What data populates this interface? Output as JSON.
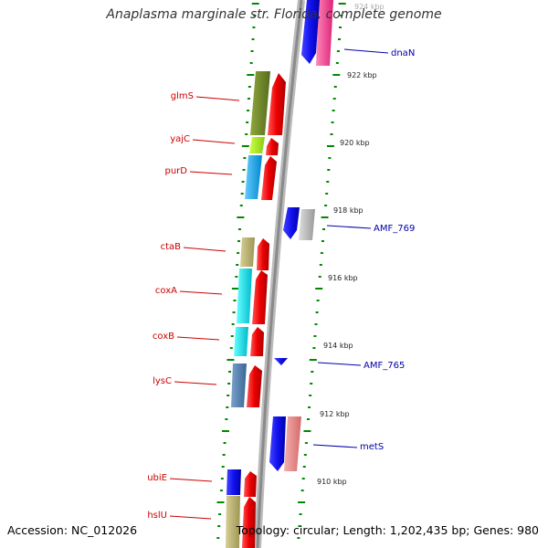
{
  "title": "Anaplasma marginale str. Florida, complete genome",
  "accession": "Accession: NC_012026",
  "summary": "Topology: circular; Length: 1,202,435 bp; Genes: 980",
  "colors": {
    "forward_label": "#cc0000",
    "reverse_label": "#0000aa",
    "tick": "#008800",
    "backbone": "#999999",
    "cds_forward": "#ee0000",
    "cds_reverse": "#1111ee"
  },
  "ruler_labels": [
    "924 kbp",
    "922 kbp",
    "920 kbp",
    "918 kbp",
    "916 kbp",
    "914 kbp",
    "912 kbp",
    "910 kbp"
  ],
  "forward_gene_labels": [
    "glmS",
    "yajC",
    "purD",
    "ctaB",
    "coxA",
    "coxB",
    "lysC",
    "ubiE",
    "hslU"
  ],
  "reverse_gene_labels": [
    "dnaN",
    "AMF_769",
    "AMF_765",
    "metS"
  ]
}
